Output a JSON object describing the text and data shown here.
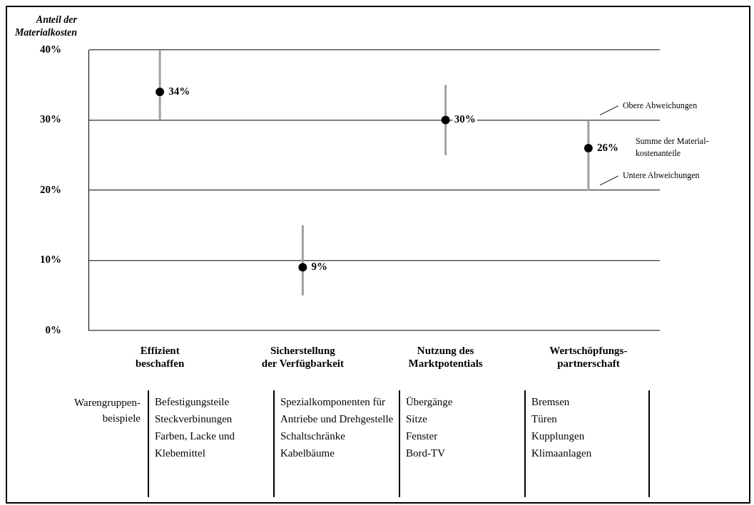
{
  "chart_data": {
    "type": "scatter",
    "ylabel": "Anteil der Materialkosten",
    "categories": [
      "Effizient beschaffen",
      "Sicherstellung der Verfügbarkeit",
      "Nutzung des Marktpotentials",
      "Wertschöpfungs-partnerschaft"
    ],
    "series": [
      {
        "color": "#000000",
        "values": [
          34,
          9,
          30,
          26
        ],
        "errors": [
          [
            30,
            40
          ],
          [
            5,
            15
          ],
          [
            25,
            35
          ],
          [
            20,
            30
          ]
        ],
        "value_labels": [
          "34%",
          "9%",
          "30%",
          "26%"
        ]
      }
    ],
    "ylim": [
      0,
      40
    ],
    "yticks": [
      {
        "value": 0,
        "label": "0%"
      },
      {
        "value": 10,
        "label": "10%"
      },
      {
        "value": 20,
        "label": "20%"
      },
      {
        "value": 30,
        "label": "30%"
      },
      {
        "value": 40,
        "label": "40%"
      }
    ],
    "grid": "y",
    "marker": "circle",
    "legend": false,
    "annotations": [
      "Obere Abweichungen",
      "Summe der Material-kostenanteile",
      "Untere Abweichungen",
      "Warengruppen-beispiele",
      "Befestigungsteile\nSteckverbinungen\nFarben, Lacke und Klebemittel",
      "Spezialkomponenten für Antriebe und Drehgestelle\nSchaltschränke\nKabelbäume",
      "Übergänge\nSitze\nFenster\nBord-TV",
      "Bremsen\nTüren\nKupplungen\nKlimaanlagen"
    ]
  }
}
